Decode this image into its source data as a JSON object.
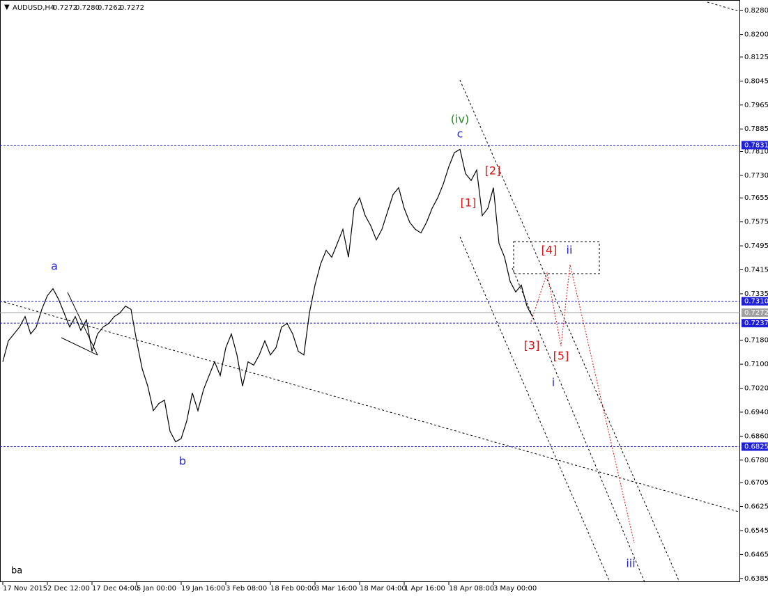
{
  "chart_data": {
    "type": "line",
    "title": "AUDUSD,H4",
    "ohlc": [
      "0.7272",
      "0.7280",
      "0.7262",
      "0.7272"
    ],
    "corner_label": "ba",
    "color": "#000000",
    "categories": [
      "17 Nov 2015",
      null,
      null,
      null,
      null,
      null,
      null,
      null,
      "2 Dec 12:00",
      null,
      null,
      null,
      null,
      null,
      null,
      null,
      "17 Dec 04:00",
      null,
      null,
      null,
      null,
      null,
      null,
      null,
      "5 Jan 00:00",
      null,
      null,
      null,
      null,
      null,
      null,
      null,
      "19 Jan 16:00",
      null,
      null,
      null,
      null,
      null,
      null,
      null,
      "3 Feb 08:00",
      null,
      null,
      null,
      null,
      null,
      null,
      null,
      "18 Feb 00:00",
      null,
      null,
      null,
      null,
      null,
      null,
      null,
      "3 Mar 16:00",
      null,
      null,
      null,
      null,
      null,
      null,
      null,
      "18 Mar 04:00",
      null,
      null,
      null,
      null,
      null,
      null,
      null,
      "1 Apr 16:00",
      null,
      null,
      null,
      null,
      null,
      null,
      null,
      "18 Apr 08:00",
      null,
      null,
      null,
      null,
      null,
      null,
      null,
      "3 May 00:00",
      null,
      null,
      null,
      null,
      null,
      null,
      null
    ],
    "values": [
      0.7108,
      0.7178,
      0.7201,
      0.7224,
      0.7259,
      0.7201,
      0.7224,
      0.7283,
      0.7329,
      0.7352,
      0.7317,
      0.7271,
      0.7224,
      0.7259,
      0.7213,
      0.7248,
      0.7143,
      0.7201,
      0.7224,
      0.7236,
      0.7259,
      0.7271,
      0.7294,
      0.7283,
      0.7178,
      0.7085,
      0.7027,
      0.6945,
      0.6969,
      0.698,
      0.6876,
      0.6841,
      0.6852,
      0.6911,
      0.7004,
      0.6945,
      0.7015,
      0.7062,
      0.7108,
      0.7062,
      0.7155,
      0.7201,
      0.7131,
      0.7027,
      0.7108,
      0.7097,
      0.7131,
      0.7178,
      0.7131,
      0.7155,
      0.7224,
      0.7236,
      0.7201,
      0.7143,
      0.7131,
      0.7271,
      0.7364,
      0.7434,
      0.748,
      0.7457,
      0.7503,
      0.755,
      0.7457,
      0.762,
      0.7655,
      0.7596,
      0.7562,
      0.7515,
      0.755,
      0.7608,
      0.7666,
      0.7689,
      0.762,
      0.7573,
      0.755,
      0.7538,
      0.7573,
      0.762,
      0.7655,
      0.7701,
      0.7759,
      0.7806,
      0.7817,
      0.7736,
      0.7713,
      0.7748,
      0.7596,
      0.762,
      0.7689,
      0.7503,
      0.7457,
      0.7376,
      0.7341,
      0.7364,
      0.7294,
      0.7259
    ],
    "ylim": [
      0.6373,
      0.8313
    ],
    "yticks": [
      {
        "value": 0.828,
        "label": "0.8280"
      },
      {
        "value": 0.82,
        "label": "0.8200"
      },
      {
        "value": 0.8125,
        "label": "0.8125"
      },
      {
        "value": 0.8045,
        "label": "0.8045"
      },
      {
        "value": 0.7965,
        "label": "0.7965"
      },
      {
        "value": 0.7885,
        "label": "0.7885"
      },
      {
        "value": 0.781,
        "label": "0.7810"
      },
      {
        "value": 0.773,
        "label": "0.7730"
      },
      {
        "value": 0.7655,
        "label": "0.7655"
      },
      {
        "value": 0.7575,
        "label": "0.7575"
      },
      {
        "value": 0.7495,
        "label": "0.7495"
      },
      {
        "value": 0.7415,
        "label": "0.7415"
      },
      {
        "value": 0.7335,
        "label": "0.7335"
      },
      {
        "value": 0.718,
        "label": "0.7180"
      },
      {
        "value": 0.71,
        "label": "0.7100"
      },
      {
        "value": 0.702,
        "label": "0.7020"
      },
      {
        "value": 0.694,
        "label": "0.6940"
      },
      {
        "value": 0.686,
        "label": "0.6860"
      },
      {
        "value": 0.678,
        "label": "0.6780"
      },
      {
        "value": 0.6705,
        "label": "0.6705"
      },
      {
        "value": 0.6625,
        "label": "0.6625"
      },
      {
        "value": 0.6545,
        "label": "0.6545"
      },
      {
        "value": 0.6465,
        "label": "0.6465"
      },
      {
        "value": 0.6385,
        "label": "0.6385"
      }
    ],
    "levels": [
      {
        "value": 0.7831,
        "label": "0.7831",
        "color": "#1f1fd8"
      },
      {
        "value": 0.731,
        "label": "0.7310",
        "color": "#1f1fd8"
      },
      {
        "value": 0.7272,
        "label": "0.7272",
        "color": "#a0a0a0"
      },
      {
        "value": 0.7237,
        "label": "0.7237",
        "color": "#1f1fd8"
      },
      {
        "value": 0.6825,
        "label": "0.6825",
        "color": "#1f1fd8"
      }
    ],
    "annotations": [
      {
        "text": "(iv)",
        "color": "#1e8a1e"
      },
      {
        "text": "c",
        "color": "#1f1fd8"
      },
      {
        "text": "[2]",
        "color": "#e01010"
      },
      {
        "text": "[1]",
        "color": "#e01010"
      },
      {
        "text": "[4]",
        "color": "#e01010"
      },
      {
        "text": "ii",
        "color": "#1f1fd8"
      },
      {
        "text": "[3]",
        "color": "#e01010"
      },
      {
        "text": "[5]",
        "color": "#e01010"
      },
      {
        "text": "i",
        "color": "#1f1fd8"
      },
      {
        "text": "iii",
        "color": "#1f1fd8"
      },
      {
        "text": "a",
        "color": "#1f1fd8"
      },
      {
        "text": "b",
        "color": "#1f1fd8"
      }
    ]
  }
}
